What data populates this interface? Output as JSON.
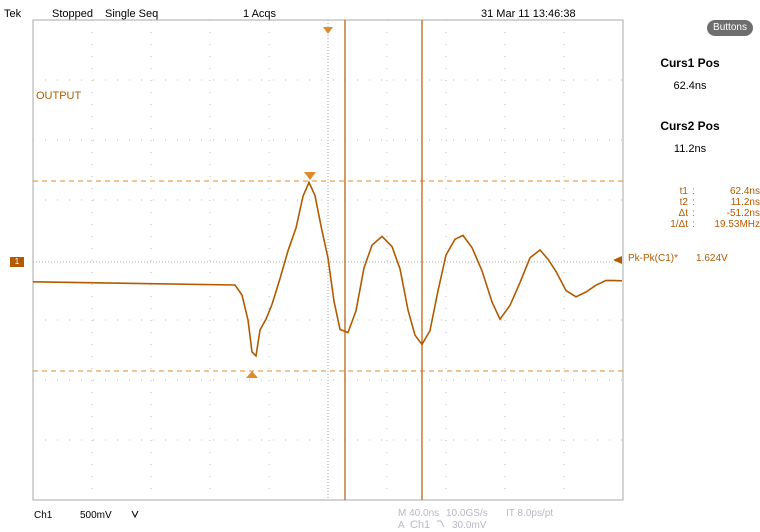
{
  "status": {
    "brand": "Tek",
    "state": "Stopped",
    "mode": "Single Seq",
    "acqs": "1 Acqs",
    "datetime": "31 Mar 11 13:46:38"
  },
  "buttons_label": "Buttons",
  "cursor1": {
    "label": "Curs1 Pos",
    "value": "62.4ns"
  },
  "cursor2": {
    "label": "Curs2 Pos",
    "value": "11.2ns"
  },
  "readout": [
    {
      "key": "t1",
      "value": "62.4ns"
    },
    {
      "key": "t2",
      "value": "11.2ns"
    },
    {
      "key": "Δt",
      "value": "-51.2ns"
    },
    {
      "key": "1/Δt",
      "value": "19.53MHz"
    }
  ],
  "measurement": {
    "label": "Pk-Pk(C1)*",
    "value": "1.624V"
  },
  "channel": {
    "name": "Ch1",
    "scale": "500mV",
    "coupling_icon": "bandwidth-limit-icon",
    "marker": "1",
    "waveform_label": "OUTPUT",
    "color": "#b25a00"
  },
  "timebase": {
    "horizontal": "M 40.0ns",
    "sample_rate": "10.0GS/s",
    "interval": "IT 8.0ps/pt",
    "trigger_prefix": "A",
    "trigger_source": "Ch1",
    "trigger_slope_icon": "falling-edge-icon",
    "trigger_level": "30.0mV"
  }
}
